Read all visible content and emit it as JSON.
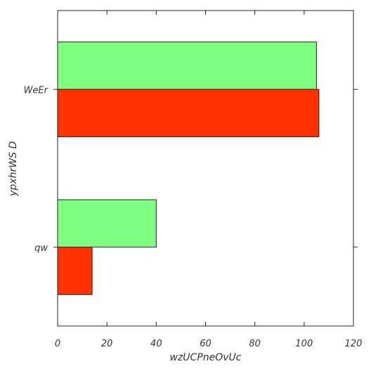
{
  "chart_data": {
    "type": "bar",
    "orientation": "horizontal",
    "categories": [
      "qw",
      "WeEr"
    ],
    "series": [
      {
        "values": [
          40,
          105
        ],
        "color": "#7fff7f"
      },
      {
        "values": [
          14,
          106
        ],
        "color": "#ff3300"
      }
    ],
    "xlabel": "wzUCPneOvUc",
    "ylabel": "ypxhrWS D",
    "xlim": [
      0,
      120
    ],
    "xticks": [
      0,
      20,
      40,
      60,
      80,
      100,
      120
    ],
    "grid": false,
    "legend": "none"
  }
}
